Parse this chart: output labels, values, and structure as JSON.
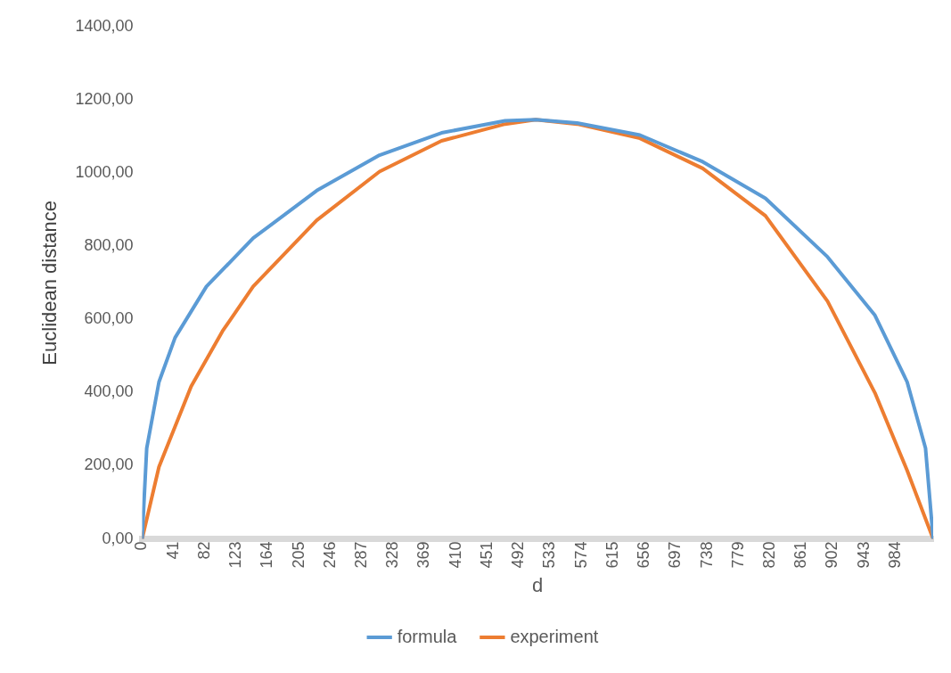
{
  "chart_data": {
    "type": "line",
    "xlabel": "d",
    "ylabel": "Euclidean distance",
    "xlim": [
      0,
      1033
    ],
    "xticks": [
      0,
      41,
      82,
      123,
      164,
      205,
      246,
      287,
      328,
      369,
      410,
      451,
      492,
      533,
      574,
      615,
      656,
      697,
      738,
      779,
      820,
      861,
      902,
      943,
      984
    ],
    "ylim": [
      0,
      1400
    ],
    "yticks": [
      {
        "value": 0,
        "label": "0,00"
      },
      {
        "value": 200,
        "label": "200,00"
      },
      {
        "value": 400,
        "label": "400,00"
      },
      {
        "value": 600,
        "label": "600,00"
      },
      {
        "value": 800,
        "label": "800,00"
      },
      {
        "value": 1000,
        "label": "1000,00"
      },
      {
        "value": 1200,
        "label": "1200,00"
      },
      {
        "value": 1400,
        "label": "1400,00"
      }
    ],
    "grid": false,
    "legend": "bottom",
    "marker": "none",
    "line_style": "solid",
    "series": [
      {
        "name": "formula",
        "color": "#5b9bd5",
        "x": [
          0,
          6,
          22,
          43,
          84,
          145,
          228,
          310,
          391,
          474,
          514,
          568,
          650,
          732,
          814,
          895,
          957,
          999,
          1023,
          1033
        ],
        "values": [
          0,
          248,
          429,
          550,
          690,
          822,
          952,
          1049,
          1110,
          1143,
          1146,
          1137,
          1104,
          1031,
          931,
          771,
          611,
          429,
          248,
          0
        ]
      },
      {
        "name": "experiment",
        "color": "#ed7d31",
        "x": [
          0,
          22,
          64,
          105,
          145,
          228,
          310,
          391,
          474,
          514,
          568,
          650,
          732,
          814,
          895,
          957,
          999,
          1033
        ],
        "values": [
          0,
          197,
          417,
          568,
          690,
          871,
          1004,
          1088,
          1134,
          1146,
          1134,
          1095,
          1013,
          883,
          650,
          399,
          187,
          0
        ]
      }
    ]
  }
}
